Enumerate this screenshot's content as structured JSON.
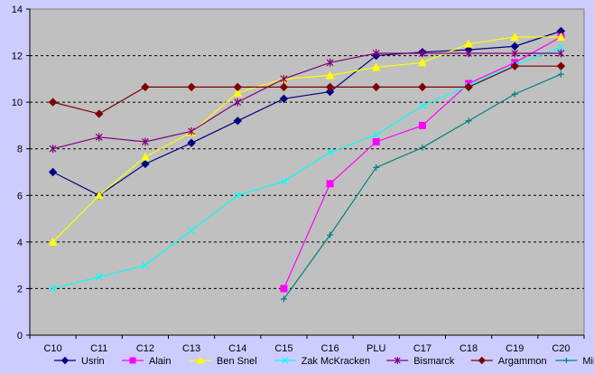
{
  "chart_data": {
    "type": "line",
    "title": "",
    "xlabel": "",
    "ylabel": "",
    "categories": [
      "C10",
      "C11",
      "C12",
      "C13",
      "C14",
      "C15",
      "C16",
      "PLU",
      "C17",
      "C18",
      "C19",
      "C20"
    ],
    "ylim": [
      0,
      14
    ],
    "yticks": [
      0,
      2,
      4,
      6,
      8,
      10,
      12,
      14
    ],
    "grid": "dashed horizontal at each y tick",
    "legend_position": "bottom",
    "plot_background": "#c0c0c0",
    "page_background": "#ccccff",
    "series": [
      {
        "name": "Usrin",
        "color": "#000080",
        "marker": "diamond",
        "values": [
          7.0,
          6.0,
          7.35,
          8.25,
          9.2,
          10.15,
          10.45,
          12.0,
          12.15,
          12.25,
          12.4,
          13.05
        ]
      },
      {
        "name": "Alain",
        "color": "#ff00ff",
        "marker": "square",
        "values": [
          null,
          null,
          null,
          null,
          null,
          2.0,
          6.5,
          8.3,
          9.0,
          10.8,
          11.7,
          12.8
        ]
      },
      {
        "name": "Ben Snel",
        "color": "#ffff00",
        "marker": "triangle",
        "values": [
          4.0,
          6.0,
          7.65,
          8.7,
          10.4,
          11.0,
          11.15,
          11.5,
          11.7,
          12.5,
          12.8,
          12.8
        ]
      },
      {
        "name": "Zak McKracken",
        "color": "#00ffff",
        "marker": "x",
        "values": [
          2.0,
          2.5,
          3.0,
          4.5,
          6.0,
          6.6,
          7.85,
          8.6,
          9.85,
          10.7,
          11.6,
          12.35
        ]
      },
      {
        "name": "Bismarck",
        "color": "#800080",
        "marker": "star",
        "values": [
          8.0,
          8.5,
          8.3,
          8.75,
          10.0,
          11.0,
          11.7,
          12.1,
          12.1,
          12.1,
          12.1,
          12.1
        ]
      },
      {
        "name": "Argammon",
        "color": "#800000",
        "marker": "diamond",
        "values": [
          10.0,
          9.5,
          10.65,
          10.65,
          10.65,
          10.65,
          10.65,
          10.65,
          10.65,
          10.65,
          11.55,
          11.55
        ]
      },
      {
        "name": "Mingva",
        "color": "#008080",
        "marker": "plus",
        "values": [
          null,
          null,
          null,
          null,
          null,
          1.55,
          4.3,
          7.2,
          8.05,
          9.2,
          10.35,
          11.2
        ]
      }
    ]
  }
}
